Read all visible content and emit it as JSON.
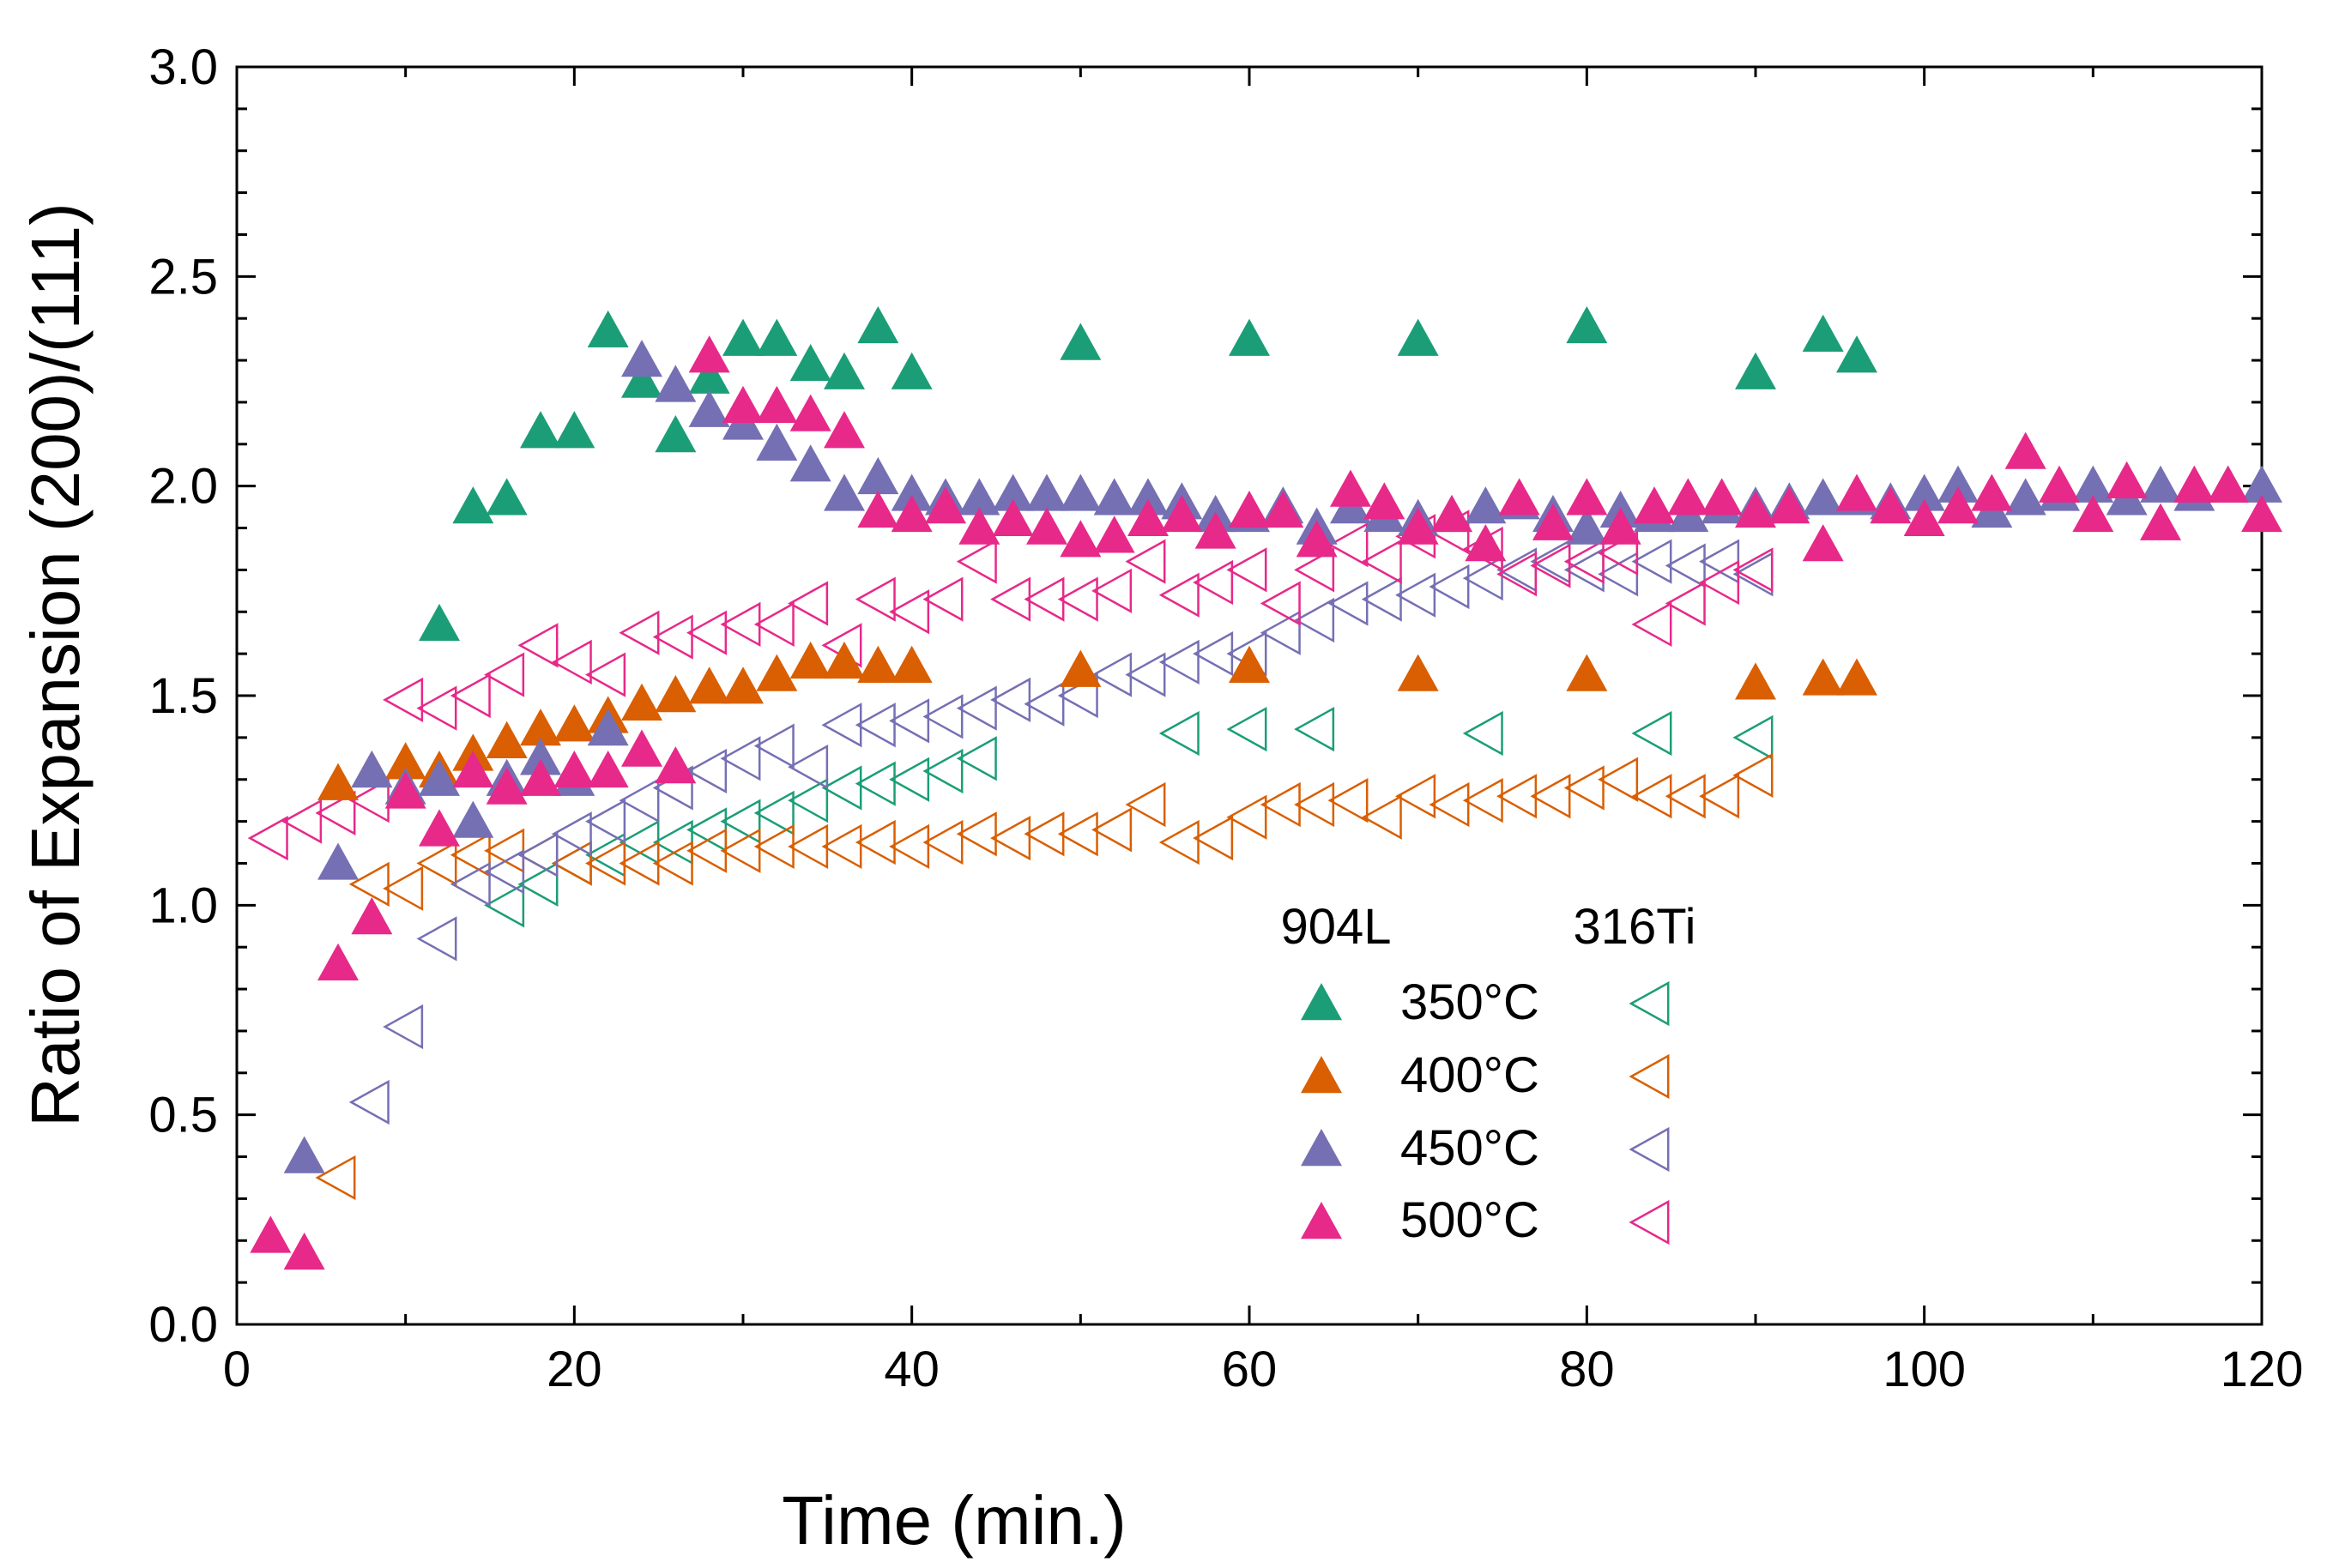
{
  "chart_data": {
    "type": "scatter",
    "title": "",
    "xlabel": "Time (min.)",
    "ylabel": "Ratio of Expansion (200)/(111)",
    "xlim": [
      0,
      120
    ],
    "ylim": [
      0,
      3.0
    ],
    "xticks": [
      0,
      20,
      40,
      60,
      80,
      100,
      120
    ],
    "yticks": [
      0.0,
      0.5,
      1.0,
      1.5,
      2.0,
      2.5,
      3.0
    ],
    "xtick_labels": [
      "0",
      "20",
      "40",
      "60",
      "80",
      "100",
      "120"
    ],
    "ytick_labels": [
      "0.0",
      "0.5",
      "1.0",
      "1.5",
      "2.0",
      "2.5",
      "3.0"
    ],
    "grid": false,
    "legend": {
      "placement": "bottom-center",
      "group_headers": [
        "904L",
        "316Ti"
      ],
      "labels": [
        "350°C",
        "400°C",
        "450°C",
        "500°C"
      ]
    },
    "colors": {
      "350": "#1b9e77",
      "400": "#d95f02",
      "450": "#7570b3",
      "500": "#e7298a"
    },
    "series": [
      {
        "name": "904L 350°C",
        "alloy": "904L",
        "temperature": "350°C",
        "marker": "triangle-up-filled",
        "colorKey": "350",
        "x": [
          12,
          14,
          16,
          18,
          20,
          22,
          24,
          26,
          28,
          30,
          32,
          34,
          36,
          38,
          40,
          50,
          60,
          70,
          80,
          90,
          94,
          96
        ],
        "y": [
          1.67,
          1.95,
          1.97,
          2.13,
          2.13,
          2.37,
          2.25,
          2.12,
          2.26,
          2.35,
          2.35,
          2.29,
          2.27,
          2.38,
          2.27,
          2.34,
          2.35,
          2.35,
          2.38,
          2.27,
          2.36,
          2.31
        ]
      },
      {
        "name": "904L 400°C",
        "alloy": "904L",
        "temperature": "400°C",
        "marker": "triangle-up-filled",
        "colorKey": "400",
        "x": [
          6,
          8,
          10,
          12,
          14,
          16,
          18,
          20,
          22,
          24,
          26,
          28,
          30,
          32,
          34,
          36,
          38,
          40,
          50,
          60,
          70,
          80,
          90,
          94,
          96
        ],
        "y": [
          1.29,
          1.32,
          1.34,
          1.32,
          1.36,
          1.39,
          1.42,
          1.43,
          1.45,
          1.48,
          1.5,
          1.52,
          1.52,
          1.55,
          1.58,
          1.58,
          1.57,
          1.57,
          1.56,
          1.57,
          1.55,
          1.55,
          1.53,
          1.54,
          1.54
        ]
      },
      {
        "name": "904L 450°C",
        "alloy": "904L",
        "temperature": "450°C",
        "marker": "triangle-up-filled",
        "colorKey": "450",
        "x": [
          4,
          6,
          8,
          10,
          12,
          14,
          16,
          18,
          20,
          22,
          24,
          26,
          28,
          30,
          32,
          34,
          36,
          38,
          40,
          42,
          44,
          46,
          48,
          50,
          52,
          54,
          56,
          58,
          60,
          62,
          64,
          66,
          68,
          70,
          72,
          74,
          76,
          78,
          80,
          82,
          84,
          86,
          88,
          90,
          92,
          94,
          96,
          98,
          100,
          102,
          104,
          106,
          108,
          110,
          112,
          114,
          116,
          118,
          120
        ],
        "y": [
          0.4,
          1.1,
          1.32,
          1.28,
          1.3,
          1.2,
          1.3,
          1.35,
          1.3,
          1.42,
          2.3,
          2.24,
          2.18,
          2.15,
          2.1,
          2.05,
          1.98,
          2.02,
          1.98,
          1.97,
          1.97,
          1.98,
          1.98,
          1.98,
          1.97,
          1.97,
          1.96,
          1.93,
          1.93,
          1.95,
          1.9,
          1.95,
          1.93,
          1.92,
          1.93,
          1.95,
          1.96,
          1.93,
          1.9,
          1.94,
          1.93,
          1.93,
          1.95,
          1.95,
          1.96,
          1.97,
          1.97,
          1.96,
          1.98,
          2.0,
          1.94,
          1.97,
          1.98,
          2.0,
          1.97,
          2.0,
          1.98,
          2.0,
          2.0
        ]
      },
      {
        "name": "904L 500°C",
        "alloy": "904L",
        "temperature": "500°C",
        "marker": "triangle-up-filled",
        "colorKey": "500",
        "x": [
          2,
          4,
          6,
          8,
          10,
          12,
          14,
          16,
          18,
          20,
          22,
          24,
          26,
          28,
          30,
          32,
          34,
          36,
          38,
          40,
          42,
          44,
          46,
          48,
          50,
          52,
          54,
          56,
          58,
          60,
          62,
          64,
          66,
          68,
          70,
          72,
          74,
          76,
          78,
          80,
          82,
          84,
          86,
          88,
          90,
          92,
          94,
          96,
          98,
          100,
          102,
          104,
          106,
          108,
          110,
          112,
          114,
          116,
          118,
          120
        ],
        "y": [
          0.21,
          0.17,
          0.86,
          0.97,
          1.27,
          1.18,
          1.32,
          1.28,
          1.3,
          1.32,
          1.32,
          1.37,
          1.33,
          2.31,
          2.19,
          2.19,
          2.17,
          2.13,
          1.94,
          1.93,
          1.95,
          1.9,
          1.92,
          1.9,
          1.87,
          1.88,
          1.92,
          1.93,
          1.89,
          1.94,
          1.94,
          1.87,
          1.99,
          1.96,
          1.9,
          1.93,
          1.86,
          1.97,
          1.91,
          1.97,
          1.9,
          1.95,
          1.97,
          1.97,
          1.94,
          1.95,
          1.86,
          1.98,
          1.95,
          1.92,
          1.95,
          1.98,
          2.08,
          2.0,
          1.93,
          2.01,
          1.91,
          2.0,
          2.0,
          1.93
        ]
      },
      {
        "name": "316Ti 350°C",
        "alloy": "316Ti",
        "temperature": "350°C",
        "marker": "triangle-left-open",
        "colorKey": "350",
        "x": [
          16,
          18,
          20,
          22,
          24,
          26,
          28,
          30,
          32,
          34,
          36,
          38,
          40,
          42,
          44,
          56,
          60,
          64,
          74,
          84,
          90
        ],
        "y": [
          1.0,
          1.05,
          1.1,
          1.12,
          1.15,
          1.15,
          1.18,
          1.2,
          1.22,
          1.25,
          1.28,
          1.29,
          1.3,
          1.32,
          1.35,
          1.41,
          1.42,
          1.42,
          1.41,
          1.41,
          1.4
        ]
      },
      {
        "name": "316Ti 400°C",
        "alloy": "316Ti",
        "temperature": "400°C",
        "marker": "triangle-left-open",
        "colorKey": "400",
        "x": [
          6,
          8,
          10,
          12,
          14,
          16,
          18,
          20,
          22,
          24,
          26,
          28,
          30,
          32,
          34,
          36,
          38,
          40,
          42,
          44,
          46,
          48,
          50,
          52,
          54,
          56,
          58,
          60,
          62,
          64,
          66,
          68,
          70,
          72,
          74,
          76,
          78,
          80,
          82,
          84,
          86,
          88,
          90
        ],
        "y": [
          0.35,
          1.05,
          1.04,
          1.1,
          1.12,
          1.13,
          1.12,
          1.1,
          1.1,
          1.1,
          1.1,
          1.13,
          1.13,
          1.14,
          1.14,
          1.14,
          1.15,
          1.14,
          1.15,
          1.17,
          1.16,
          1.17,
          1.17,
          1.18,
          1.24,
          1.15,
          1.16,
          1.21,
          1.24,
          1.24,
          1.25,
          1.21,
          1.26,
          1.24,
          1.25,
          1.26,
          1.26,
          1.28,
          1.3,
          1.26,
          1.26,
          1.26,
          1.31
        ]
      },
      {
        "name": "316Ti 450°C",
        "alloy": "316Ti",
        "temperature": "450°C",
        "marker": "triangle-left-open",
        "colorKey": "450",
        "x": [
          8,
          10,
          12,
          14,
          16,
          18,
          20,
          22,
          24,
          26,
          28,
          30,
          32,
          34,
          36,
          38,
          40,
          42,
          44,
          46,
          48,
          50,
          52,
          54,
          56,
          58,
          60,
          62,
          64,
          66,
          68,
          70,
          72,
          74,
          76,
          78,
          80,
          82,
          84,
          86,
          88,
          90
        ],
        "y": [
          0.53,
          0.71,
          0.92,
          1.05,
          1.08,
          1.12,
          1.17,
          1.2,
          1.25,
          1.28,
          1.32,
          1.35,
          1.38,
          1.33,
          1.43,
          1.43,
          1.44,
          1.45,
          1.47,
          1.49,
          1.48,
          1.5,
          1.55,
          1.55,
          1.58,
          1.6,
          1.6,
          1.65,
          1.68,
          1.72,
          1.73,
          1.74,
          1.76,
          1.78,
          1.8,
          1.82,
          1.8,
          1.79,
          1.82,
          1.81,
          1.82,
          1.79
        ]
      },
      {
        "name": "316Ti 500°C",
        "alloy": "316Ti",
        "temperature": "500°C",
        "marker": "triangle-left-open",
        "colorKey": "500",
        "x": [
          2,
          4,
          6,
          8,
          10,
          12,
          14,
          16,
          18,
          20,
          22,
          24,
          26,
          28,
          30,
          32,
          34,
          36,
          38,
          40,
          42,
          44,
          46,
          48,
          50,
          52,
          54,
          56,
          58,
          60,
          62,
          64,
          66,
          68,
          70,
          72,
          74,
          76,
          78,
          80,
          82,
          84,
          86,
          88,
          90
        ],
        "y": [
          1.16,
          1.2,
          1.22,
          1.25,
          1.49,
          1.47,
          1.5,
          1.55,
          1.62,
          1.58,
          1.55,
          1.65,
          1.64,
          1.65,
          1.67,
          1.67,
          1.72,
          1.62,
          1.73,
          1.7,
          1.73,
          1.82,
          1.73,
          1.73,
          1.73,
          1.75,
          1.82,
          1.74,
          1.77,
          1.8,
          1.72,
          1.8,
          1.86,
          1.82,
          1.88,
          1.89,
          1.85,
          1.79,
          1.81,
          1.82,
          1.84,
          1.67,
          1.72,
          1.77,
          1.8
        ]
      }
    ]
  }
}
